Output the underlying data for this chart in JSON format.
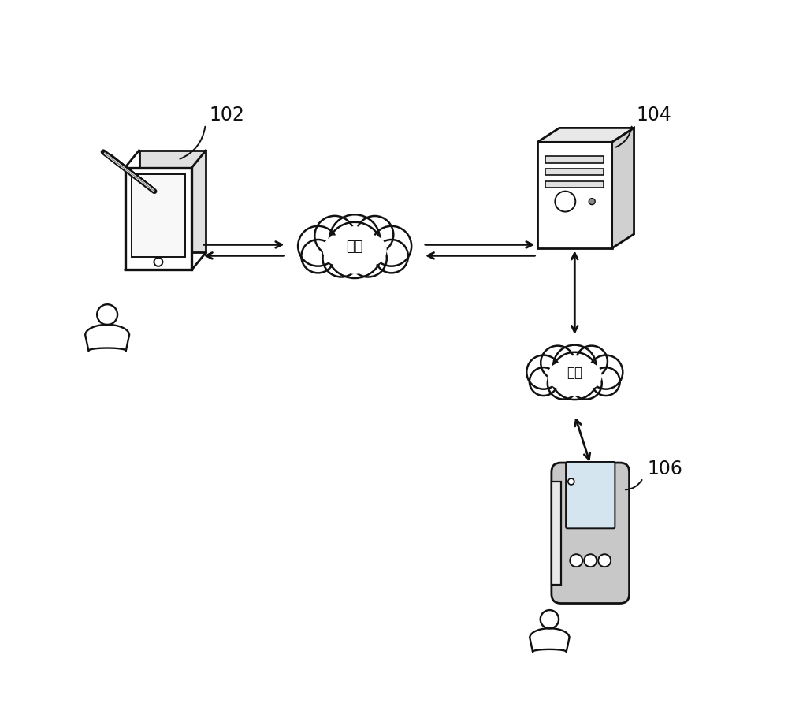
{
  "background_color": "#ffffff",
  "label_102": "102",
  "label_104": "104",
  "label_106": "106",
  "cloud1_text": "网络",
  "cloud2_text": "局网",
  "fig_width": 10.0,
  "fig_height": 8.97,
  "line_color": "#111111",
  "line_width": 2.0
}
